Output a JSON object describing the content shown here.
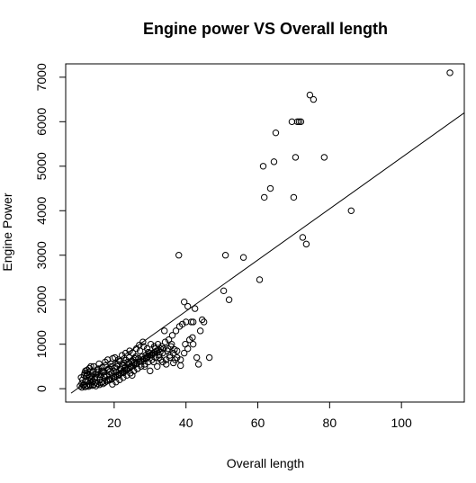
{
  "chart_data": {
    "type": "scatter",
    "title": "Engine power VS Overall length",
    "xlabel": "Overall length",
    "ylabel": "Engine Power",
    "xlim": [
      6.5,
      117.5
    ],
    "ylim": [
      -300,
      7300
    ],
    "x_ticks": [
      20,
      40,
      60,
      80,
      100
    ],
    "y_ticks": [
      0,
      1000,
      2000,
      3000,
      4000,
      5000,
      6000,
      7000
    ],
    "grid": false,
    "marker": "open-circle",
    "series": [
      {
        "points": [
          [
            10.5,
            60
          ],
          [
            11.0,
            120
          ],
          [
            11.2,
            200
          ],
          [
            11.5,
            90
          ],
          [
            11.8,
            350
          ],
          [
            12.0,
            150
          ],
          [
            12.2,
            280
          ],
          [
            12.5,
            420
          ],
          [
            12.7,
            180
          ],
          [
            13.0,
            100
          ],
          [
            13.2,
            250
          ],
          [
            13.5,
            500
          ],
          [
            13.8,
            300
          ],
          [
            14.0,
            160
          ],
          [
            14.2,
            380
          ],
          [
            14.5,
            220
          ],
          [
            14.8,
            140
          ],
          [
            15.0,
            330
          ],
          [
            15.3,
            260
          ],
          [
            15.6,
            450
          ],
          [
            16.0,
            200
          ],
          [
            16.3,
            310
          ],
          [
            16.6,
            150
          ],
          [
            17.0,
            380
          ],
          [
            17.3,
            260
          ],
          [
            17.6,
            520
          ],
          [
            18.0,
            300
          ],
          [
            18.3,
            420
          ],
          [
            18.6,
            220
          ],
          [
            19.0,
            560
          ],
          [
            19.3,
            350
          ],
          [
            19.6,
            680
          ],
          [
            20.0,
            250
          ],
          [
            20.3,
            470
          ],
          [
            20.6,
            380
          ],
          [
            21.0,
            550
          ],
          [
            21.3,
            300
          ],
          [
            21.6,
            620
          ],
          [
            22.0,
            440
          ],
          [
            22.3,
            520
          ],
          [
            22.6,
            360
          ],
          [
            23.0,
            480
          ],
          [
            23.3,
            640
          ],
          [
            23.6,
            420
          ],
          [
            24.0,
            560
          ],
          [
            24.3,
            850
          ],
          [
            24.6,
            500
          ],
          [
            25.0,
            300
          ],
          [
            25.3,
            650
          ],
          [
            25.6,
            580
          ],
          [
            26.0,
            720
          ],
          [
            26.5,
            450
          ],
          [
            27.0,
            980
          ],
          [
            27.5,
            620
          ],
          [
            28.0,
            1050
          ],
          [
            28.5,
            500
          ],
          [
            29.0,
            680
          ],
          [
            29.5,
            820
          ],
          [
            30.0,
            400
          ],
          [
            30.5,
            750
          ],
          [
            31.0,
            600
          ],
          [
            31.5,
            900
          ],
          [
            32.0,
            500
          ],
          [
            32.5,
            700
          ],
          [
            33.0,
            650
          ],
          [
            33.5,
            800
          ],
          [
            34.0,
            1300
          ],
          [
            34.5,
            550
          ],
          [
            35.0,
            900
          ],
          [
            35.5,
            700
          ],
          [
            36.0,
            1000
          ],
          [
            36.5,
            580
          ],
          [
            37.0,
            650
          ],
          [
            37.5,
            850
          ],
          [
            38.0,
            3000
          ],
          [
            38.5,
            520
          ],
          [
            39.0,
            1450
          ],
          [
            39.5,
            1950
          ],
          [
            40.0,
            1500
          ],
          [
            40.5,
            1850
          ],
          [
            41.0,
            1100
          ],
          [
            41.5,
            1500
          ],
          [
            42.0,
            1500
          ],
          [
            42.5,
            1800
          ],
          [
            43.0,
            700
          ],
          [
            43.5,
            550
          ],
          [
            44.0,
            1300
          ],
          [
            44.5,
            1550
          ],
          [
            45.0,
            1500
          ],
          [
            46.5,
            700
          ],
          [
            50.5,
            2200
          ],
          [
            51.0,
            3000
          ],
          [
            52.0,
            2000
          ],
          [
            56.0,
            2950
          ],
          [
            60.5,
            2450
          ],
          [
            61.5,
            5000
          ],
          [
            61.8,
            4300
          ],
          [
            63.5,
            4500
          ],
          [
            64.5,
            5100
          ],
          [
            65.0,
            5750
          ],
          [
            69.5,
            6000
          ],
          [
            70.0,
            4300
          ],
          [
            70.5,
            5200
          ],
          [
            71.0,
            6000
          ],
          [
            71.5,
            6000
          ],
          [
            72.0,
            6000
          ],
          [
            72.5,
            3400
          ],
          [
            73.5,
            3250
          ],
          [
            74.5,
            6600
          ],
          [
            75.5,
            6500
          ],
          [
            78.5,
            5200
          ],
          [
            86.0,
            4000
          ],
          [
            113.5,
            7100
          ],
          [
            11.0,
            30
          ],
          [
            11.4,
            70
          ],
          [
            11.9,
            40
          ],
          [
            12.4,
            60
          ],
          [
            12.9,
            50
          ],
          [
            13.4,
            80
          ],
          [
            13.9,
            70
          ],
          [
            14.4,
            90
          ],
          [
            14.9,
            60
          ],
          [
            15.4,
            110
          ],
          [
            15.9,
            90
          ],
          [
            16.4,
            130
          ],
          [
            16.9,
            110
          ],
          [
            17.4,
            140
          ],
          [
            17.9,
            170
          ],
          [
            18.4,
            190
          ],
          [
            18.9,
            200
          ],
          [
            19.4,
            230
          ],
          [
            19.9,
            260
          ],
          [
            20.4,
            280
          ],
          [
            20.9,
            300
          ],
          [
            21.4,
            330
          ],
          [
            21.9,
            350
          ],
          [
            22.4,
            380
          ],
          [
            22.9,
            400
          ],
          [
            23.4,
            420
          ],
          [
            23.9,
            450
          ],
          [
            24.4,
            470
          ],
          [
            24.9,
            500
          ],
          [
            25.4,
            520
          ],
          [
            25.9,
            550
          ],
          [
            26.4,
            570
          ],
          [
            26.9,
            600
          ],
          [
            27.4,
            620
          ],
          [
            27.9,
            650
          ],
          [
            28.4,
            670
          ],
          [
            28.9,
            700
          ],
          [
            29.4,
            720
          ],
          [
            29.9,
            750
          ],
          [
            30.4,
            770
          ],
          [
            30.9,
            800
          ],
          [
            31.4,
            820
          ],
          [
            31.9,
            850
          ],
          [
            32.4,
            870
          ],
          [
            32.9,
            900
          ],
          [
            12.0,
            400
          ],
          [
            12.6,
            320
          ],
          [
            13.1,
            460
          ],
          [
            13.7,
            220
          ],
          [
            14.3,
            500
          ],
          [
            15.2,
            420
          ],
          [
            15.8,
            560
          ],
          [
            16.7,
            480
          ],
          [
            17.5,
            600
          ],
          [
            18.2,
            650
          ],
          [
            19.2,
            500
          ],
          [
            20.2,
            700
          ],
          [
            21.2,
            650
          ],
          [
            22.2,
            750
          ],
          [
            23.2,
            800
          ],
          [
            24.2,
            700
          ],
          [
            25.2,
            800
          ],
          [
            26.2,
            900
          ],
          [
            27.2,
            850
          ],
          [
            28.2,
            950
          ],
          [
            29.2,
            900
          ],
          [
            30.2,
            1000
          ],
          [
            31.2,
            950
          ],
          [
            32.2,
            1000
          ],
          [
            33.2,
            950
          ],
          [
            34.2,
            1050
          ],
          [
            35.2,
            1100
          ],
          [
            36.2,
            1200
          ],
          [
            37.2,
            1300
          ],
          [
            38.2,
            1400
          ],
          [
            19.5,
            100
          ],
          [
            20.5,
            150
          ],
          [
            21.5,
            200
          ],
          [
            22.5,
            250
          ],
          [
            23.5,
            300
          ],
          [
            24.5,
            350
          ],
          [
            25.5,
            400
          ],
          [
            26.5,
            450
          ],
          [
            27.5,
            500
          ],
          [
            28.5,
            550
          ],
          [
            29.5,
            600
          ],
          [
            30.5,
            650
          ],
          [
            31.5,
            700
          ],
          [
            32.5,
            750
          ],
          [
            33.5,
            600
          ],
          [
            34.5,
            650
          ],
          [
            35.5,
            750
          ],
          [
            36.5,
            800
          ],
          [
            37.5,
            700
          ],
          [
            38.5,
            650
          ],
          [
            39.5,
            800
          ],
          [
            40.5,
            900
          ],
          [
            42.0,
            1000
          ],
          [
            13.5,
            140
          ],
          [
            14.6,
            250
          ],
          [
            16.1,
            260
          ],
          [
            17.2,
            300
          ],
          [
            18.7,
            380
          ],
          [
            19.8,
            400
          ],
          [
            21.7,
            450
          ],
          [
            23.8,
            600
          ],
          [
            25.8,
            680
          ],
          [
            27.8,
            720
          ],
          [
            29.8,
            800
          ],
          [
            31.8,
            850
          ],
          [
            33.8,
            900
          ],
          [
            35.8,
            950
          ],
          [
            39.8,
            1000
          ],
          [
            41.8,
            1150
          ],
          [
            10.8,
            250
          ],
          [
            11.6,
            300
          ],
          [
            12.3,
            350
          ],
          [
            13.3,
            380
          ],
          [
            15.5,
            380
          ],
          [
            16.5,
            400
          ],
          [
            18.5,
            450
          ],
          [
            20.8,
            500
          ],
          [
            22.8,
            580
          ],
          [
            24.8,
            620
          ],
          [
            26.8,
            680
          ],
          [
            28.8,
            750
          ],
          [
            30.8,
            800
          ],
          [
            32.8,
            820
          ],
          [
            34.8,
            850
          ],
          [
            36.8,
            880
          ]
        ]
      }
    ],
    "fit_line": {
      "x1": 8.0,
      "y1": -100,
      "x2": 117.5,
      "y2": 6200
    }
  }
}
